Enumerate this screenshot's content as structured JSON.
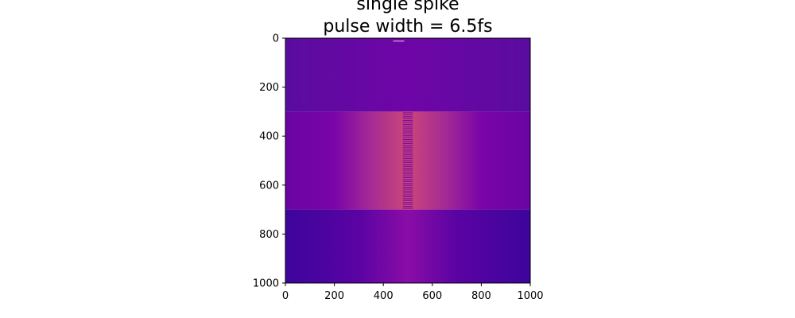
{
  "chart_data": {
    "type": "heatmap",
    "title": [
      "single spike",
      "pulse width = 6.5fs"
    ],
    "xlabel": "",
    "ylabel": "",
    "xlim": [
      0,
      1000
    ],
    "ylim": [
      1000,
      0
    ],
    "xticks": [
      0,
      200,
      400,
      600,
      800,
      1000
    ],
    "yticks": [
      0,
      200,
      400,
      600,
      800,
      1000
    ],
    "grid": false,
    "colormap": "plasma",
    "colors": {
      "top_band": "#5e0aa0",
      "middle_band_edge": "#6a04a3",
      "middle_band_center": "#c9427a",
      "bottom_band_edge": "#3c049b",
      "bottom_band_center": "#8a0ca6",
      "fringe_dark": "#6a00a8",
      "fringe_light": "#f0a070"
    },
    "regions": [
      {
        "name": "top",
        "y_range": [
          0,
          300
        ],
        "description_values": {
          "peak_x": 500
        }
      },
      {
        "name": "middle",
        "y_range": [
          300,
          700
        ],
        "description_values": {
          "peak_x": 500,
          "fringe_x_range": [
            480,
            520
          ]
        }
      },
      {
        "name": "bottom",
        "y_range": [
          700,
          1000
        ],
        "description_values": {
          "peak_x": 500
        }
      }
    ]
  }
}
